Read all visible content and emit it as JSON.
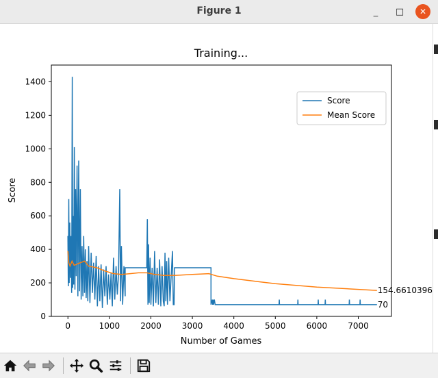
{
  "window": {
    "title": "Figure 1"
  },
  "window_controls": {
    "minimize": "_",
    "maximize": "□",
    "close": "✕"
  },
  "chart_data": {
    "type": "line",
    "title": "Training...",
    "xlabel": "Number of Games",
    "ylabel": "Score",
    "xlim": [
      -400,
      7800
    ],
    "ylim": [
      0,
      1500
    ],
    "xticks": [
      0,
      1000,
      2000,
      3000,
      4000,
      5000,
      6000,
      7000
    ],
    "yticks": [
      0,
      200,
      400,
      600,
      800,
      1000,
      1200,
      1400
    ],
    "legend": {
      "position": "top-right",
      "entries": [
        "Score",
        "Mean Score"
      ]
    },
    "grid": false,
    "series": [
      {
        "name": "Score",
        "color": "#1f77b4",
        "x": [
          0,
          10,
          20,
          30,
          45,
          60,
          75,
          90,
          105,
          115,
          125,
          140,
          155,
          170,
          185,
          200,
          220,
          240,
          260,
          280,
          300,
          320,
          340,
          360,
          380,
          400,
          420,
          440,
          460,
          480,
          500,
          530,
          560,
          590,
          620,
          650,
          680,
          710,
          740,
          770,
          800,
          830,
          860,
          890,
          920,
          950,
          980,
          1010,
          1040,
          1070,
          1100,
          1130,
          1160,
          1190,
          1220,
          1250,
          1270,
          1290,
          1320,
          1350,
          1380,
          1380,
          1400,
          1900,
          1915,
          1930,
          1945,
          1960,
          1980,
          2000,
          2030,
          2060,
          2090,
          2120,
          2150,
          2180,
          2210,
          2240,
          2270,
          2300,
          2320,
          2340,
          2360,
          2380,
          2400,
          2430,
          2460,
          2490,
          2520,
          2540,
          2560,
          2570,
          2600,
          3400,
          3450,
          3450,
          3480,
          3490,
          3500,
          3510,
          3530,
          3550,
          3560,
          5090,
          5095,
          5100,
          5105,
          5540,
          5545,
          5550,
          5555,
          6030,
          6035,
          6040,
          6045,
          6200,
          6205,
          6210,
          6215,
          6780,
          6785,
          6790,
          6795,
          7040,
          7045,
          7050,
          7055,
          7450
        ],
        "y": [
          480,
          180,
          700,
          200,
          560,
          230,
          480,
          140,
          1430,
          170,
          600,
          190,
          1010,
          160,
          760,
          240,
          900,
          120,
          930,
          150,
          760,
          100,
          420,
          120,
          480,
          140,
          400,
          110,
          330,
          90,
          420,
          80,
          380,
          140,
          320,
          100,
          360,
          60,
          300,
          90,
          310,
          50,
          280,
          120,
          300,
          70,
          250,
          100,
          260,
          60,
          350,
          100,
          300,
          130,
          250,
          760,
          90,
          420,
          70,
          300,
          120,
          290,
          290,
          290,
          580,
          70,
          430,
          80,
          350,
          70,
          290,
          60,
          390,
          80,
          290,
          70,
          340,
          60,
          300,
          90,
          60,
          380,
          90,
          330,
          70,
          350,
          90,
          250,
          390,
          70,
          70,
          290,
          290,
          290,
          290,
          70,
          100,
          70,
          100,
          70,
          100,
          70,
          70,
          70,
          100,
          70,
          70,
          70,
          100,
          70,
          70,
          70,
          100,
          70,
          70,
          70,
          100,
          70,
          70,
          70,
          100,
          70,
          70,
          70,
          100,
          70,
          70,
          70
        ],
        "last_label": "70"
      },
      {
        "name": "Mean Score",
        "color": "#ff7f0e",
        "x": [
          0,
          20,
          50,
          100,
          150,
          200,
          300,
          400,
          500,
          700,
          900,
          1100,
          1300,
          1500,
          1700,
          1900,
          2100,
          2300,
          2600,
          3000,
          3400,
          3600,
          4000,
          4500,
          5000,
          5500,
          6000,
          6500,
          7000,
          7450
        ],
        "y": [
          390,
          320,
          300,
          330,
          305,
          310,
          320,
          330,
          300,
          290,
          270,
          255,
          250,
          255,
          260,
          260,
          250,
          245,
          245,
          250,
          255,
          240,
          225,
          210,
          195,
          185,
          175,
          168,
          161,
          155
        ],
        "last_label": "154.6610396"
      }
    ]
  },
  "toolbar": {
    "buttons": [
      {
        "icon": "home-icon",
        "enabled": true
      },
      {
        "icon": "back-arrow-icon",
        "enabled": false
      },
      {
        "icon": "forward-arrow-icon",
        "enabled": false
      },
      {
        "icon": "pan-icon",
        "enabled": true
      },
      {
        "icon": "zoom-icon",
        "enabled": true
      },
      {
        "icon": "configure-subplots-icon",
        "enabled": true
      },
      {
        "icon": "save-icon",
        "enabled": true
      }
    ]
  }
}
